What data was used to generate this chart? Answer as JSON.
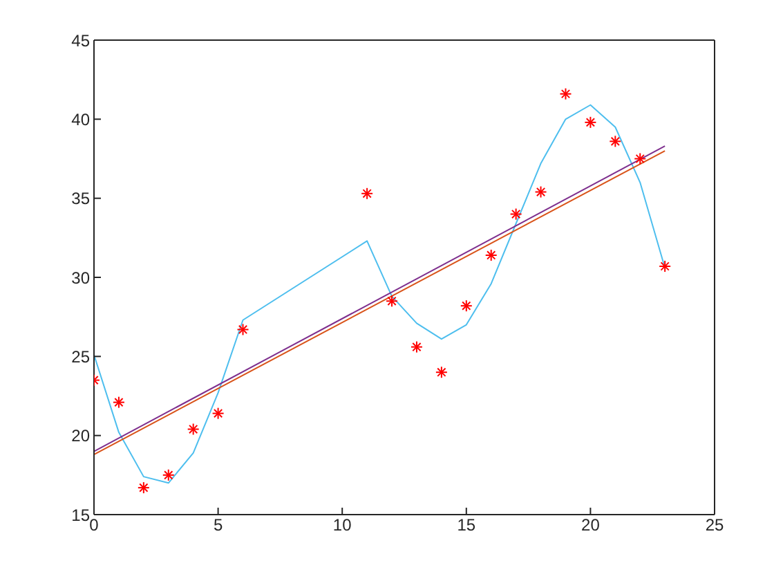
{
  "chart_data": {
    "type": "scatter",
    "xlim": [
      0,
      25
    ],
    "xticks": [
      0,
      5,
      10,
      15,
      20,
      25
    ],
    "ylim": [
      15,
      45
    ],
    "yticks": [
      15,
      20,
      25,
      30,
      35,
      40,
      45
    ],
    "grid": false,
    "series": [
      {
        "type": "line",
        "color": "#4dbeee",
        "marker": "none",
        "x": [
          0,
          1,
          2,
          3,
          4,
          5,
          6,
          11,
          12,
          13,
          14,
          15,
          16,
          17,
          18,
          19,
          20,
          21,
          22,
          23
        ],
        "values": [
          25.1,
          20.2,
          17.4,
          17.0,
          18.9,
          22.7,
          27.3,
          32.3,
          28.8,
          27.1,
          26.1,
          27.0,
          29.6,
          33.4,
          37.2,
          40.0,
          40.9,
          39.5,
          36.0,
          30.6
        ]
      },
      {
        "type": "line",
        "color": "#d95319",
        "marker": "none",
        "x": [
          0,
          23
        ],
        "values": [
          18.8,
          38.0
        ]
      },
      {
        "type": "line",
        "color": "#7e2f8e",
        "marker": "none",
        "x": [
          0,
          23
        ],
        "values": [
          19.0,
          38.3
        ]
      },
      {
        "color": "#ff0000",
        "marker": "cross",
        "x": [
          0,
          1,
          2,
          3,
          4,
          5,
          6,
          11,
          12,
          13,
          14,
          15,
          16,
          17,
          18,
          19,
          20,
          21,
          22,
          23
        ],
        "values": [
          23.5,
          22.1,
          16.7,
          17.5,
          20.4,
          21.4,
          26.7,
          35.3,
          28.5,
          25.6,
          24.0,
          28.2,
          31.4,
          34.0,
          35.4,
          41.6,
          39.8,
          38.6,
          37.5,
          30.7
        ]
      }
    ]
  }
}
